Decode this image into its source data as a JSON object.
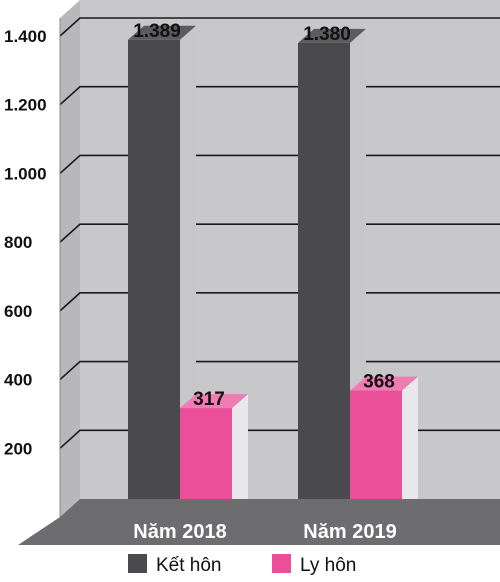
{
  "chart_data": {
    "type": "bar",
    "categories": [
      "Năm 2018",
      "Năm 2019"
    ],
    "series": [
      {
        "name": "Kết hôn",
        "values": [
          1389,
          1380
        ],
        "display_values": [
          "1.389",
          "1.380"
        ]
      },
      {
        "name": "Ly hôn",
        "values": [
          317,
          368
        ],
        "display_values": [
          "317",
          "368"
        ]
      }
    ],
    "yticks": [
      200,
      400,
      600,
      800,
      1000,
      1200,
      1400
    ],
    "ytick_labels": [
      "200",
      "400",
      "600",
      "800",
      "1.000",
      "1.200",
      "1.400"
    ],
    "ylim": [
      0,
      1400
    ],
    "grid": true,
    "three_d": true,
    "legend_position": "bottom",
    "colors": {
      "series": [
        "#4a4a4c",
        "#ec4f9a"
      ],
      "series_top": [
        "#5c5c5e",
        "#f07cb4"
      ],
      "series_side": [
        "#c7c7c9",
        "#e8e8ea"
      ],
      "back_wall": "#c8c8ca",
      "side_wall": "#b8b8ba",
      "floor": "#6d6d6f",
      "grid": "#1a1a1a"
    }
  }
}
